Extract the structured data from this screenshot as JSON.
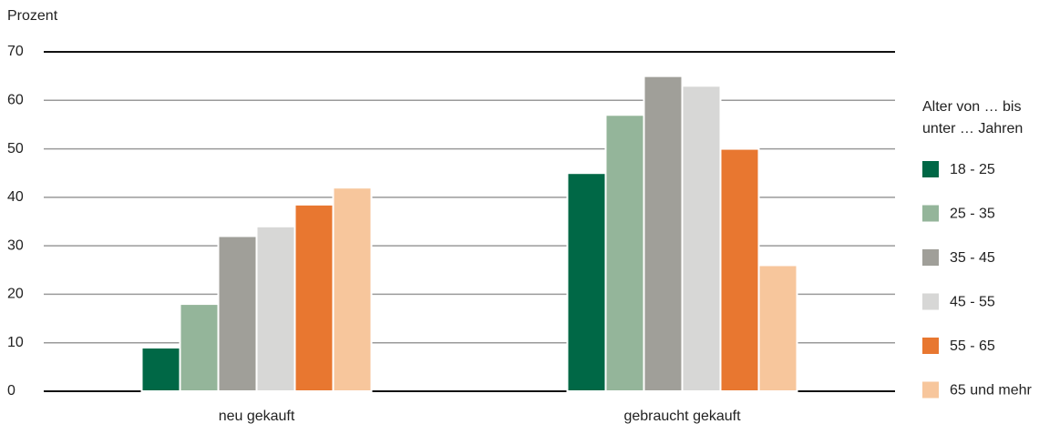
{
  "chart_data": {
    "type": "bar",
    "y_label": "Prozent",
    "legend_title": [
      "Alter von … bis",
      "unter … Jahren"
    ],
    "categories": [
      "neu gekauft",
      "gebraucht gekauft"
    ],
    "series": [
      {
        "name": "18 - 25",
        "color": "#006846",
        "values": [
          9,
          45
        ]
      },
      {
        "name": "25 - 35",
        "color": "#94b59a",
        "values": [
          18,
          57
        ]
      },
      {
        "name": "35 - 45",
        "color": "#a09f99",
        "values": [
          32,
          65
        ]
      },
      {
        "name": "45 - 55",
        "color": "#d7d7d6",
        "values": [
          34,
          63
        ]
      },
      {
        "name": "55 - 65",
        "color": "#e87730",
        "values": [
          38.5,
          50
        ]
      },
      {
        "name": "65 und mehr",
        "color": "#f7c69c",
        "values": [
          42,
          26
        ]
      }
    ],
    "ylim": [
      0,
      70
    ],
    "yticks": [
      0,
      10,
      20,
      30,
      40,
      50,
      60,
      70
    ],
    "grid": true,
    "legend": "right"
  }
}
